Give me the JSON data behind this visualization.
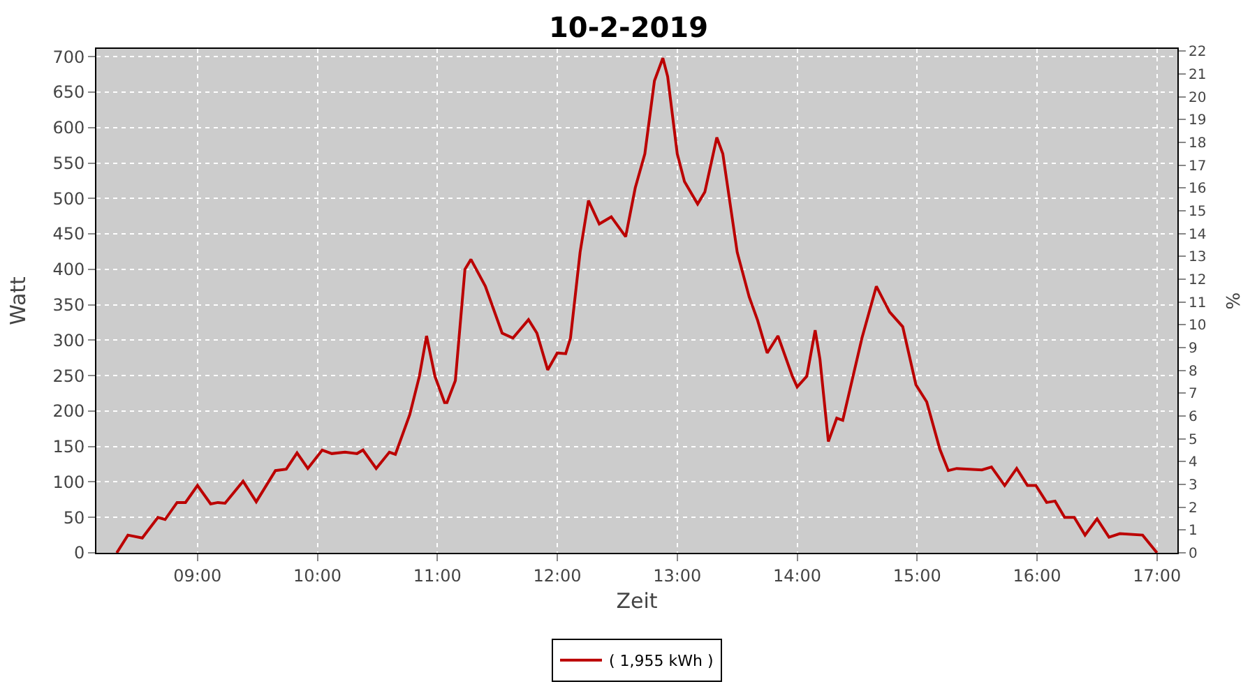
{
  "chart_data": {
    "type": "line",
    "title": "10-2-2019",
    "xlabel": "Zeit",
    "ylabel": "Watt",
    "y2label": "%",
    "x": [
      8.327,
      8.42,
      8.54,
      8.67,
      8.73,
      8.83,
      8.9,
      9.0,
      9.11,
      9.17,
      9.23,
      9.38,
      9.49,
      9.65,
      9.74,
      9.83,
      9.92,
      10.04,
      10.12,
      10.23,
      10.33,
      10.38,
      10.49,
      10.6,
      10.65,
      10.77,
      10.85,
      10.91,
      10.98,
      11.06,
      11.08,
      11.15,
      11.23,
      11.28,
      11.4,
      11.54,
      11.63,
      11.76,
      11.83,
      11.92,
      12.0,
      12.07,
      12.11,
      12.19,
      12.26,
      12.35,
      12.45,
      12.57,
      12.65,
      12.73,
      12.81,
      12.88,
      12.92,
      13.0,
      13.06,
      13.17,
      13.23,
      13.33,
      13.38,
      13.5,
      13.6,
      13.67,
      13.75,
      13.84,
      13.96,
      14.0,
      14.08,
      14.15,
      14.19,
      14.26,
      14.33,
      14.38,
      14.54,
      14.66,
      14.77,
      14.88,
      14.99,
      15.08,
      15.19,
      15.26,
      15.33,
      15.54,
      15.62,
      15.73,
      15.83,
      15.92,
      15.99,
      16.08,
      16.15,
      16.23,
      16.31,
      16.4,
      16.5,
      16.6,
      16.69,
      16.88,
      17.0
    ],
    "series": [
      {
        "name": "( 1,955 kWh )",
        "color": "#bb0000",
        "values": [
          0,
          25,
          21,
          50,
          47,
          71,
          71,
          95,
          69,
          71,
          70,
          101,
          72,
          116,
          118,
          141,
          119,
          145,
          140,
          142,
          140,
          145,
          119,
          142,
          139,
          195,
          249,
          306,
          249,
          212,
          212,
          243,
          400,
          414,
          376,
          310,
          303,
          329,
          310,
          258,
          282,
          281,
          303,
          424,
          497,
          464,
          474,
          446,
          515,
          563,
          666,
          698,
          672,
          563,
          524,
          492,
          509,
          586,
          563,
          424,
          361,
          328,
          282,
          306,
          249,
          234,
          249,
          314,
          273,
          157,
          190,
          187,
          303,
          376,
          340,
          319,
          237,
          213,
          146,
          116,
          119,
          117,
          121,
          95,
          119,
          95,
          95,
          71,
          73,
          50,
          50,
          25,
          48,
          22,
          27,
          25,
          0
        ]
      }
    ],
    "xlim": [
      8.157,
      17.17
    ],
    "xticks": [
      {
        "value": 9,
        "label": "09:00"
      },
      {
        "value": 10,
        "label": "10:00"
      },
      {
        "value": 11,
        "label": "11:00"
      },
      {
        "value": 12,
        "label": "12:00"
      },
      {
        "value": 13,
        "label": "13:00"
      },
      {
        "value": 14,
        "label": "14:00"
      },
      {
        "value": 15,
        "label": "15:00"
      },
      {
        "value": 16,
        "label": "16:00"
      },
      {
        "value": 17,
        "label": "17:00"
      }
    ],
    "ylim": [
      0,
      711
    ],
    "yticks": [
      0,
      50,
      100,
      150,
      200,
      250,
      300,
      350,
      400,
      450,
      500,
      550,
      600,
      650,
      700
    ],
    "y2lim": [
      0,
      22.1
    ],
    "y2ticks": [
      0,
      1,
      2,
      3,
      4,
      5,
      6,
      7,
      8,
      9,
      10,
      11,
      12,
      13,
      14,
      15,
      16,
      17,
      18,
      19,
      20,
      21,
      22
    ],
    "grid": true,
    "legend": "bottom",
    "marker": "none",
    "line_style": "solid"
  }
}
